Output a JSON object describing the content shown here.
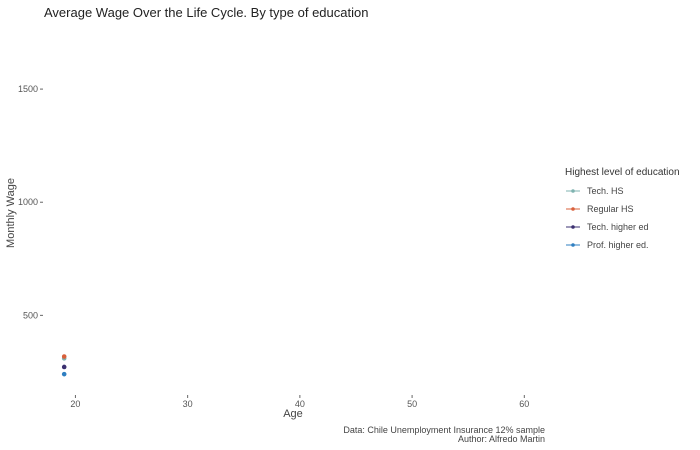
{
  "chart_data": {
    "type": "scatter",
    "title": "Average Wage Over the Life Cycle. By type of education",
    "xlabel": "Age",
    "ylabel": "Monthly Wage",
    "xlim": [
      17.2,
      62.2
    ],
    "ylim": [
      148,
      1770
    ],
    "x_ticks": [
      20,
      30,
      40,
      50,
      60
    ],
    "y_ticks": [
      500,
      1000,
      1500
    ],
    "grid": false,
    "legend": {
      "title": "Highest level of education",
      "placement": "right"
    },
    "series": [
      {
        "name": "Tech. HS",
        "color": "#7fb3b0",
        "points": [
          {
            "x": 19,
            "y": 310
          }
        ]
      },
      {
        "name": "Regular HS",
        "color": "#d9603b",
        "points": [
          {
            "x": 19,
            "y": 318
          }
        ]
      },
      {
        "name": "Tech. higher ed",
        "color": "#3b3070",
        "points": [
          {
            "x": 19,
            "y": 272
          }
        ]
      },
      {
        "name": "Prof. higher ed.",
        "color": "#2f7fc1",
        "points": [
          {
            "x": 19,
            "y": 240
          }
        ]
      }
    ],
    "caption": [
      "Data: Chile Unemployment Insurance 12% sample",
      "Author: Alfredo Martin"
    ]
  }
}
